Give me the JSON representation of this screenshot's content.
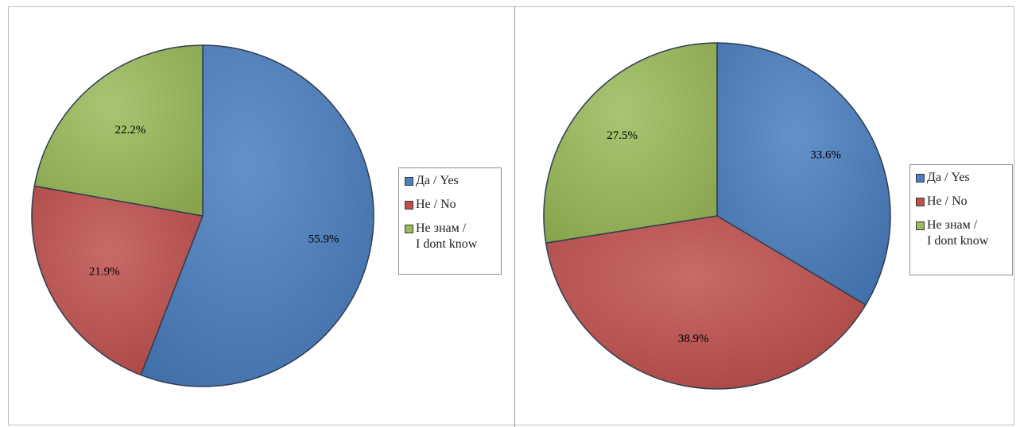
{
  "colors": {
    "yes": "#4a7ec0",
    "no": "#c0504d",
    "dontknow": "#9bbb59"
  },
  "legend": {
    "items": [
      {
        "key": "yes",
        "label": "Да / Yes"
      },
      {
        "key": "no",
        "label": "Не / No"
      },
      {
        "key": "dontknow",
        "label": "Не знам /\nI dont know"
      }
    ]
  },
  "chart_data": [
    {
      "type": "pie",
      "categories": [
        "Да / Yes",
        "Не / No",
        "Не знам / I dont know"
      ],
      "values": [
        55.9,
        21.9,
        22.2
      ],
      "data_labels": [
        "55.9%",
        "21.9%",
        "22.2%"
      ],
      "start_angle_deg": 0,
      "direction": "clockwise",
      "legend_position": "right"
    },
    {
      "type": "pie",
      "categories": [
        "Да / Yes",
        "Не / No",
        "Не знам / I dont know"
      ],
      "values": [
        33.6,
        38.9,
        27.5
      ],
      "data_labels": [
        "33.6%",
        "38.9%",
        "27.5%"
      ],
      "start_angle_deg": 0,
      "direction": "clockwise",
      "legend_position": "right"
    }
  ]
}
